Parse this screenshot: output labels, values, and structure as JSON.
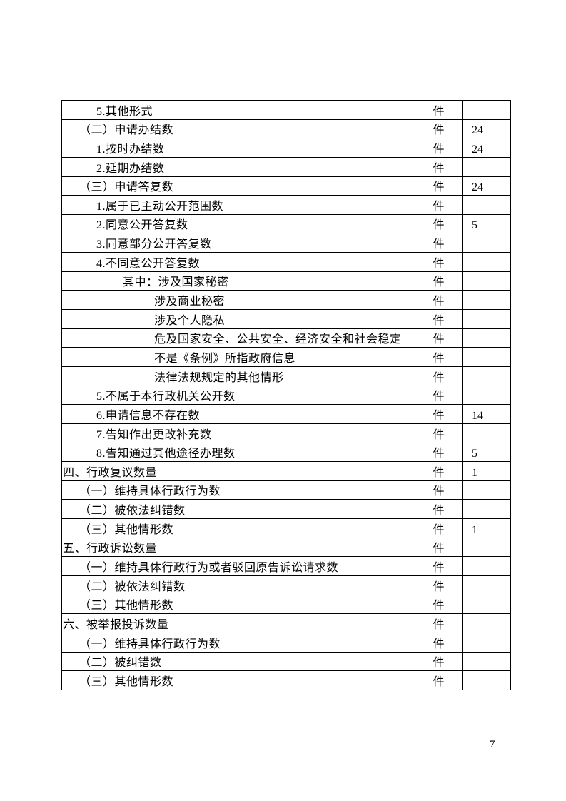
{
  "page_number": "7",
  "colors": {
    "page_background": "#ffffff",
    "border": "#000000",
    "text": "#000000"
  },
  "table": {
    "columns": [
      "item",
      "unit",
      "value"
    ],
    "rows": [
      {
        "label": "5.其他形式",
        "level": 2,
        "unit": "件",
        "value": ""
      },
      {
        "label": "（二）申请办结数",
        "level": 1,
        "unit": "件",
        "value": "24"
      },
      {
        "label": "1.按时办结数",
        "level": 2,
        "unit": "件",
        "value": "24"
      },
      {
        "label": "2.延期办结数",
        "level": 2,
        "unit": "件",
        "value": ""
      },
      {
        "label": "（三）申请答复数",
        "level": 1,
        "unit": "件",
        "value": "24"
      },
      {
        "label": "1.属于已主动公开范围数",
        "level": 2,
        "unit": "件",
        "value": ""
      },
      {
        "label": "2.同意公开答复数",
        "level": 2,
        "unit": "件",
        "value": "5"
      },
      {
        "label": "3.同意部分公开答复数",
        "level": 2,
        "unit": "件",
        "value": ""
      },
      {
        "label": "4.不同意公开答复数",
        "level": 2,
        "unit": "件",
        "value": ""
      },
      {
        "label": "其中：涉及国家秘密",
        "level": 3,
        "unit": "件",
        "value": ""
      },
      {
        "label": "涉及商业秘密",
        "level": 4,
        "unit": "件",
        "value": ""
      },
      {
        "label": "涉及个人隐私",
        "level": 4,
        "unit": "件",
        "value": ""
      },
      {
        "label": "危及国家安全、公共安全、经济安全和社会稳定",
        "level": 4,
        "unit": "件",
        "value": ""
      },
      {
        "label": "不是《条例》所指政府信息",
        "level": 4,
        "unit": "件",
        "value": ""
      },
      {
        "label": "法律法规规定的其他情形",
        "level": 4,
        "unit": "件",
        "value": ""
      },
      {
        "label": "5.不属于本行政机关公开数",
        "level": 2,
        "unit": "件",
        "value": ""
      },
      {
        "label": "6.申请信息不存在数",
        "level": 2,
        "unit": "件",
        "value": "14"
      },
      {
        "label": "7.告知作出更改补充数",
        "level": 2,
        "unit": "件",
        "value": ""
      },
      {
        "label": "8.告知通过其他途径办理数",
        "level": 2,
        "unit": "件",
        "value": "5"
      },
      {
        "label": "四、行政复议数量",
        "level": 0,
        "unit": "件",
        "value": "1"
      },
      {
        "label": "（一）维持具体行政行为数",
        "level": 1,
        "unit": "件",
        "value": ""
      },
      {
        "label": "（二）被依法纠错数",
        "level": 1,
        "unit": "件",
        "value": ""
      },
      {
        "label": "（三）其他情形数",
        "level": 1,
        "unit": "件",
        "value": "1"
      },
      {
        "label": "五、行政诉讼数量",
        "level": 0,
        "unit": "件",
        "value": ""
      },
      {
        "label": "（一）维持具体行政行为或者驳回原告诉讼请求数",
        "level": 1,
        "unit": "件",
        "value": ""
      },
      {
        "label": "（二）被依法纠错数",
        "level": 1,
        "unit": "件",
        "value": ""
      },
      {
        "label": "（三）其他情形数",
        "level": 1,
        "unit": "件",
        "value": ""
      },
      {
        "label": "六、被举报投诉数量",
        "level": 0,
        "unit": "件",
        "value": ""
      },
      {
        "label": "（一）维持具体行政行为数",
        "level": 1,
        "unit": "件",
        "value": ""
      },
      {
        "label": "（二）被纠错数",
        "level": 1,
        "unit": "件",
        "value": ""
      },
      {
        "label": "（三）其他情形数",
        "level": 1,
        "unit": "件",
        "value": ""
      }
    ]
  }
}
